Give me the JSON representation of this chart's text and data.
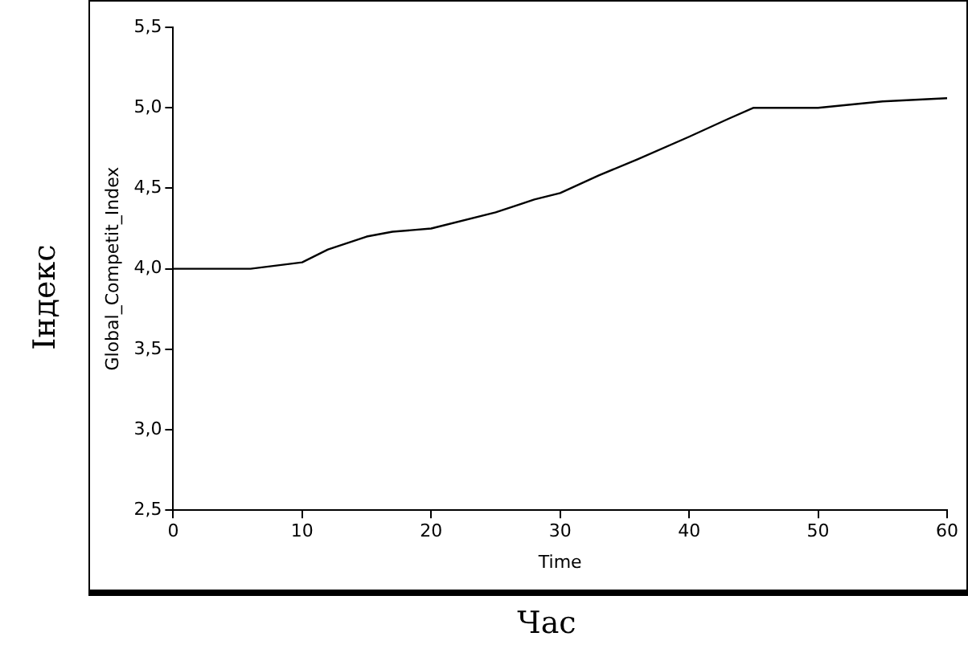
{
  "chart_data": {
    "type": "line",
    "xlabel": "Time",
    "ylabel": "Global_Competit_Index",
    "annotations": [
      "Індекс",
      "Час"
    ],
    "x": [
      0,
      6,
      10,
      12,
      15,
      17,
      20,
      25,
      28,
      30,
      33,
      36,
      40,
      43,
      45,
      50,
      55,
      60
    ],
    "series": [
      {
        "color": "#000000",
        "values": [
          4.0,
          4.0,
          4.04,
          4.12,
          4.2,
          4.23,
          4.25,
          4.35,
          4.43,
          4.47,
          4.58,
          4.68,
          4.82,
          4.93,
          5.0,
          5.0,
          5.04,
          5.06
        ]
      }
    ],
    "xlim": [
      0,
      60
    ],
    "xticks": [
      0,
      10,
      20,
      30,
      40,
      50,
      60
    ],
    "ylim": [
      2.5,
      5.5
    ],
    "yticks": [
      {
        "value": 2.5,
        "label": "2,5"
      },
      {
        "value": 3,
        "label": "3,0"
      },
      {
        "value": 3.5,
        "label": "3,5"
      },
      {
        "value": 4,
        "label": "4,0"
      },
      {
        "value": 4.5,
        "label": "4,5"
      },
      {
        "value": 5,
        "label": "5,0"
      },
      {
        "value": 5.5,
        "label": "5,5"
      }
    ],
    "grid": false,
    "legend": false,
    "marker": "none",
    "line_style": "solid"
  }
}
